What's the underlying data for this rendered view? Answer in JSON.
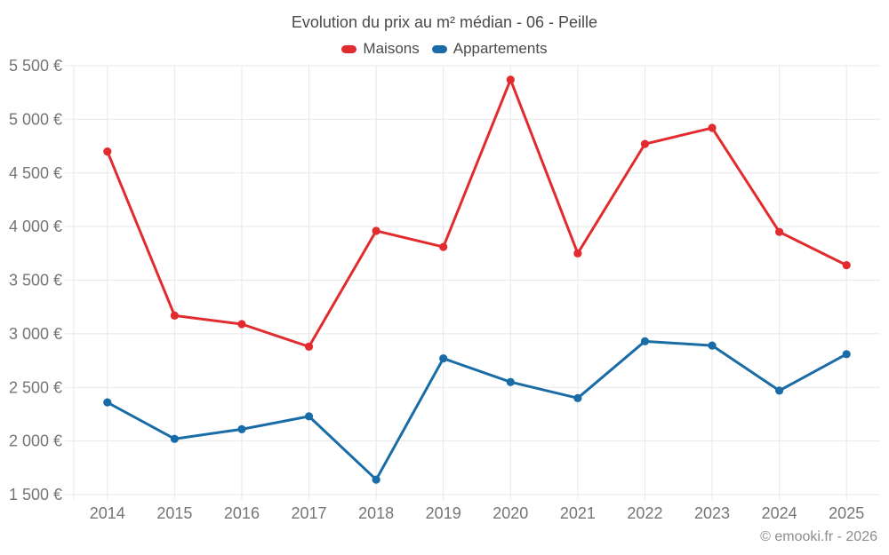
{
  "title": "Evolution du prix au m² médian - 06 - Peille",
  "footer": "© emooki.fr - 2026",
  "colors": {
    "maisons": "#e22b2e",
    "appartements": "#1a6ca6",
    "grid": "#e8e8e8"
  },
  "chart_data": {
    "type": "line",
    "title": "Evolution du prix au m² médian - 06 - Peille",
    "x": [
      "2014",
      "2015",
      "2016",
      "2017",
      "2018",
      "2019",
      "2020",
      "2021",
      "2022",
      "2023",
      "2024",
      "2025"
    ],
    "series": [
      {
        "name": "Maisons",
        "color": "#e22b2e",
        "values": [
          4700,
          3170,
          3090,
          2880,
          3960,
          3810,
          5370,
          3750,
          4770,
          4920,
          3950,
          3640
        ]
      },
      {
        "name": "Appartements",
        "color": "#1a6ca6",
        "values": [
          2360,
          2020,
          2110,
          2230,
          1640,
          2770,
          2550,
          2400,
          2930,
          2890,
          2470,
          2810
        ]
      }
    ],
    "xlabel": "",
    "ylabel": "",
    "ylim": [
      1500,
      5500
    ],
    "ytick_step": 500,
    "yticklabels": [
      "1 500 €",
      "2 000 €",
      "2 500 €",
      "3 000 €",
      "3 500 €",
      "4 000 €",
      "4 500 €",
      "5 000 €",
      "5 500 €"
    ],
    "grid": true,
    "legend_position": "top"
  }
}
